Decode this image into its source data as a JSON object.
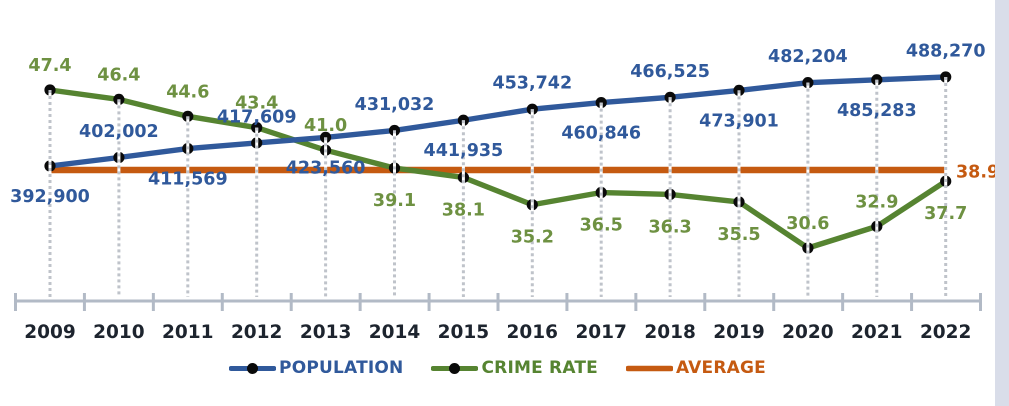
{
  "window": {
    "background": "#ffffff",
    "right_edge_strip_color": "#d9dde9"
  },
  "chart_data": {
    "type": "line",
    "title": "",
    "xlabel": "",
    "ylabel": "",
    "axes_hidden_y": true,
    "grid": false,
    "legend_position": "bottom",
    "categories": [
      "2009",
      "2010",
      "2011",
      "2012",
      "2013",
      "2014",
      "2015",
      "2016",
      "2017",
      "2018",
      "2019",
      "2020",
      "2021",
      "2022"
    ],
    "series": [
      {
        "name": "POPULATION",
        "type": "line",
        "axis": "left",
        "color": "#30599B",
        "marker_color": "#0a0a0a",
        "values": [
          392900,
          402002,
          411569,
          417609,
          423560,
          431032,
          441935,
          453742,
          460846,
          466525,
          473901,
          482204,
          485283,
          488270
        ],
        "data_labels": [
          "392,900",
          "402,002",
          "411,569",
          "417,609",
          "423,560",
          "431,032",
          "441,935",
          "453,742",
          "460,846",
          "466,525",
          "473,901",
          "482,204",
          "485,283",
          "488,270"
        ],
        "label_side": [
          "below",
          "above",
          "below",
          "above",
          "below",
          "above",
          "below",
          "above",
          "below",
          "above",
          "below",
          "above",
          "below",
          "above"
        ]
      },
      {
        "name": "CRIME RATE",
        "type": "line",
        "axis": "right",
        "color": "#568431",
        "label_color": "#6E9142",
        "marker_color": "#0a0a0a",
        "values": [
          47.4,
          46.4,
          44.6,
          43.4,
          41.0,
          39.1,
          38.1,
          35.2,
          36.5,
          36.3,
          35.5,
          30.6,
          32.9,
          37.7
        ],
        "data_labels": [
          "47.4",
          "46.4",
          "44.6",
          "43.4",
          "41.0",
          "39.1",
          "38.1",
          "35.2",
          "36.5",
          "36.3",
          "35.5",
          "30.6",
          "32.9",
          "37.7"
        ],
        "label_side": [
          "above",
          "above",
          "above",
          "above",
          "above",
          "below",
          "below",
          "below",
          "below",
          "below",
          "below",
          "above",
          "above",
          "below"
        ]
      },
      {
        "name": "AVERAGE",
        "type": "constant-line",
        "color": "#C55A11",
        "value": 38.9,
        "data_label": "38.9"
      }
    ],
    "x_axis": {
      "line_color": "#B2BAC6",
      "label_color": "#1D242E"
    },
    "drop_lines": {
      "color": "#BFC3CA"
    }
  }
}
